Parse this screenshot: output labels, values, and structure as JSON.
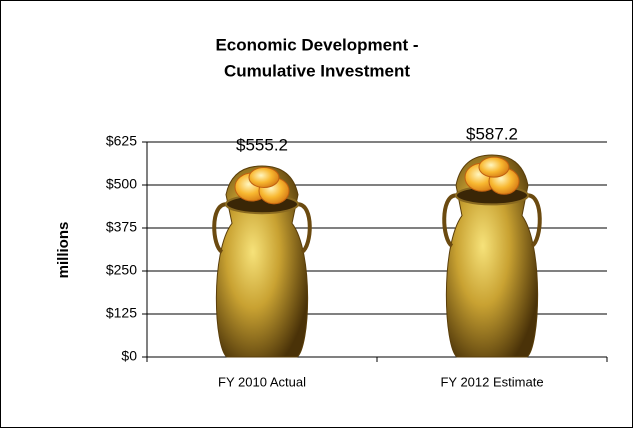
{
  "chart_data": {
    "type": "bar",
    "title": [
      "Economic Development -",
      "Cumulative Investment"
    ],
    "y_label": "millions",
    "categories": [
      "FY 2010 Actual",
      "FY 2012 Estimate"
    ],
    "values": [
      555.2,
      587.2
    ],
    "value_labels": [
      "$555.2",
      "$587.2"
    ],
    "color": "#b8901e",
    "ylim": [
      0,
      625
    ],
    "yticks": [
      {
        "value": 0,
        "label": "$0"
      },
      {
        "value": 125,
        "label": "$125"
      },
      {
        "value": 250,
        "label": "$250"
      },
      {
        "value": 375,
        "label": "$375"
      },
      {
        "value": 500,
        "label": "$500"
      },
      {
        "value": 625,
        "label": "$625"
      }
    ],
    "grid": true
  }
}
